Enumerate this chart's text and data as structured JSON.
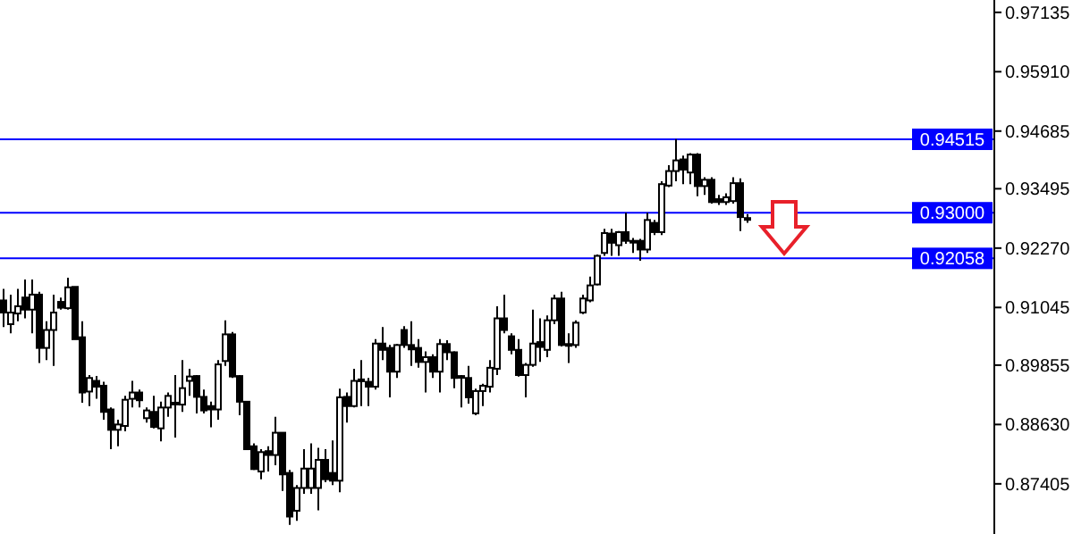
{
  "chart_data": {
    "type": "candlestick",
    "categories": [
      null,
      null,
      null,
      null,
      null,
      null,
      null,
      null,
      null,
      null,
      null,
      null,
      null,
      null,
      null,
      null,
      null,
      null,
      null,
      null,
      null,
      null,
      null,
      null,
      null,
      null,
      null,
      null,
      null,
      null,
      null,
      null,
      null,
      null,
      null,
      null,
      null,
      null,
      null,
      null,
      null,
      null,
      null,
      null,
      null,
      null,
      null,
      null,
      null,
      null,
      null,
      null,
      null,
      null,
      null,
      null,
      null,
      null,
      null,
      null,
      null,
      null,
      null,
      null,
      null,
      null,
      null,
      null,
      null,
      null,
      null,
      null,
      null,
      null,
      null,
      null,
      null,
      null,
      null,
      null,
      null,
      null,
      null,
      null,
      null,
      null,
      null,
      null,
      null,
      null,
      null,
      null,
      null,
      null,
      null,
      null,
      null,
      null,
      null,
      null,
      null,
      null,
      null,
      null,
      null,
      null,
      null,
      null,
      null,
      null,
      null,
      null,
      null,
      null,
      null,
      null,
      null,
      null,
      null,
      null,
      null,
      null,
      null,
      null,
      null,
      null,
      null,
      null,
      null,
      null,
      null,
      null,
      null,
      null,
      null,
      null,
      null,
      null,
      null
    ],
    "ohlc": [
      [
        0.9119,
        0.9143,
        0.9064,
        0.9094
      ],
      [
        0.907,
        0.9131,
        0.9051,
        0.9094
      ],
      [
        0.9092,
        0.9143,
        0.9076,
        0.9107
      ],
      [
        0.9125,
        0.9162,
        0.9082,
        0.91
      ],
      [
        0.91,
        0.9162,
        0.9051,
        0.9131
      ],
      [
        0.9131,
        0.9137,
        0.899,
        0.9021
      ],
      [
        0.9021,
        0.9076,
        0.8996,
        0.9058
      ],
      [
        0.9058,
        0.9131,
        0.8984,
        0.9094
      ],
      [
        0.9116,
        0.9125,
        0.91,
        0.9104
      ],
      [
        0.9103,
        0.9166,
        0.91,
        0.9146
      ],
      [
        0.9147,
        0.9147,
        0.9039,
        0.9039
      ],
      [
        0.9043,
        0.9076,
        0.8908,
        0.8929
      ],
      [
        0.8931,
        0.8965,
        0.8901,
        0.8959
      ],
      [
        0.8953,
        0.8963,
        0.8916,
        0.8941
      ],
      [
        0.8943,
        0.8951,
        0.8873,
        0.8889
      ],
      [
        0.8894,
        0.8898,
        0.8812,
        0.8852
      ],
      [
        0.8852,
        0.8873,
        0.8818,
        0.8863
      ],
      [
        0.886,
        0.8922,
        0.8849,
        0.8914
      ],
      [
        0.8916,
        0.8953,
        0.8898,
        0.8929
      ],
      [
        0.8929,
        0.8935,
        0.8898,
        0.8913
      ],
      [
        0.8876,
        0.8898,
        0.8867,
        0.8892
      ],
      [
        0.8889,
        0.8922,
        0.8855,
        0.8858
      ],
      [
        0.8855,
        0.891,
        0.8828,
        0.8898
      ],
      [
        0.8898,
        0.8929,
        0.8879,
        0.8922
      ],
      [
        0.8908,
        0.8965,
        0.8836,
        0.8906
      ],
      [
        0.8904,
        0.8996,
        0.8889,
        0.8938
      ],
      [
        0.8953,
        0.8978,
        0.8922,
        0.8962
      ],
      [
        0.8963,
        0.8965,
        0.8886,
        0.892
      ],
      [
        0.892,
        0.8935,
        0.8886,
        0.8892
      ],
      [
        0.8901,
        0.891,
        0.8857,
        0.8894
      ],
      [
        0.8894,
        0.8996,
        0.8873,
        0.8987
      ],
      [
        0.8994,
        0.9078,
        0.8984,
        0.9049
      ],
      [
        0.9049,
        0.9054,
        0.8959,
        0.8962
      ],
      [
        0.8963,
        0.8965,
        0.8882,
        0.891
      ],
      [
        0.891,
        0.891,
        0.8812,
        0.8812
      ],
      [
        0.8818,
        0.8824,
        0.8769,
        0.8771
      ],
      [
        0.8766,
        0.8812,
        0.875,
        0.8806
      ],
      [
        0.8808,
        0.8818,
        0.8766,
        0.88
      ],
      [
        0.88,
        0.8879,
        0.8779,
        0.8846
      ],
      [
        0.8846,
        0.8846,
        0.8726,
        0.876
      ],
      [
        0.8763,
        0.8769,
        0.8656,
        0.8673
      ],
      [
        0.8685,
        0.8738,
        0.8664,
        0.8732
      ],
      [
        0.8732,
        0.8812,
        0.872,
        0.8772
      ],
      [
        0.8732,
        0.8824,
        0.872,
        0.8772
      ],
      [
        0.8732,
        0.8815,
        0.8686,
        0.879
      ],
      [
        0.879,
        0.8812,
        0.8744,
        0.875
      ],
      [
        0.8763,
        0.883,
        0.8738,
        0.8747
      ],
      [
        0.8747,
        0.8937,
        0.8723,
        0.8919
      ],
      [
        0.892,
        0.8929,
        0.8867,
        0.8901
      ],
      [
        0.8901,
        0.8978,
        0.8898,
        0.8953
      ],
      [
        0.8953,
        0.8996,
        0.8901,
        0.8956
      ],
      [
        0.8951,
        0.8959,
        0.8901,
        0.8941
      ],
      [
        0.8941,
        0.9039,
        0.8935,
        0.903
      ],
      [
        0.903,
        0.9064,
        0.8996,
        0.9017
      ],
      [
        0.9021,
        0.9027,
        0.8919,
        0.8972
      ],
      [
        0.8972,
        0.9029,
        0.8959,
        0.9027
      ],
      [
        0.9058,
        0.9066,
        0.9021,
        0.9027
      ],
      [
        0.9027,
        0.9076,
        0.8984,
        0.9018
      ],
      [
        0.9021,
        0.9039,
        0.898,
        0.8992
      ],
      [
        0.8992,
        0.9014,
        0.8929,
        0.9002
      ],
      [
        0.9002,
        0.9008,
        0.8959,
        0.8972
      ],
      [
        0.8972,
        0.9039,
        0.8929,
        0.9029
      ],
      [
        0.9029,
        0.9037,
        0.8996,
        0.9012
      ],
      [
        0.9012,
        0.9014,
        0.8938,
        0.8959
      ],
      [
        0.8963,
        0.8965,
        0.8898,
        0.8962
      ],
      [
        0.8959,
        0.8984,
        0.8906,
        0.8919
      ],
      [
        0.8886,
        0.8937,
        0.8882,
        0.8932
      ],
      [
        0.8932,
        0.8947,
        0.8901,
        0.8943
      ],
      [
        0.8941,
        0.8996,
        0.8929,
        0.898
      ],
      [
        0.8978,
        0.9107,
        0.8965,
        0.9082
      ],
      [
        0.9082,
        0.9131,
        0.9051,
        0.9058
      ],
      [
        0.9045,
        0.9051,
        0.9008,
        0.9017
      ],
      [
        0.9017,
        0.9039,
        0.8962,
        0.8965
      ],
      [
        0.8965,
        0.899,
        0.8919,
        0.8986
      ],
      [
        0.8986,
        0.91,
        0.8982,
        0.903
      ],
      [
        0.9033,
        0.9082,
        0.8992,
        0.9023
      ],
      [
        0.9017,
        0.9088,
        0.9002,
        0.9078
      ],
      [
        0.9078,
        0.9131,
        0.907,
        0.9123
      ],
      [
        0.9123,
        0.9137,
        0.9024,
        0.9027
      ],
      [
        0.9028,
        0.9051,
        0.899,
        0.9029
      ],
      [
        0.9027,
        0.9078,
        0.9021,
        0.9073
      ],
      [
        0.9094,
        0.9131,
        0.9091,
        0.9123
      ],
      [
        0.9119,
        0.9168,
        0.9115,
        0.915
      ],
      [
        0.9152,
        0.9214,
        0.915,
        0.9211
      ],
      [
        0.9217,
        0.9267,
        0.9211,
        0.9258
      ],
      [
        0.9257,
        0.9267,
        0.9211,
        0.9238
      ],
      [
        0.9233,
        0.9262,
        0.9211,
        0.926
      ],
      [
        0.926,
        0.93,
        0.9236,
        0.9242
      ],
      [
        0.9242,
        0.9248,
        0.9217,
        0.9241
      ],
      [
        0.9242,
        0.9246,
        0.9201,
        0.9224
      ],
      [
        0.9224,
        0.93,
        0.9217,
        0.9285
      ],
      [
        0.9279,
        0.9285,
        0.9254,
        0.926
      ],
      [
        0.926,
        0.9365,
        0.9254,
        0.9359
      ],
      [
        0.9356,
        0.9398,
        0.9353,
        0.9386
      ],
      [
        0.9386,
        0.9452,
        0.9365,
        0.9408
      ],
      [
        0.941,
        0.9418,
        0.9359,
        0.9389
      ],
      [
        0.9383,
        0.9423,
        0.9359,
        0.942
      ],
      [
        0.942,
        0.9423,
        0.9334,
        0.9355
      ],
      [
        0.9355,
        0.9373,
        0.9337,
        0.9368
      ],
      [
        0.9368,
        0.9373,
        0.9319,
        0.9322
      ],
      [
        0.9328,
        0.9337,
        0.9316,
        0.9322
      ],
      [
        0.9322,
        0.934,
        0.9316,
        0.9332
      ],
      [
        0.9324,
        0.9373,
        0.9319,
        0.9361
      ],
      [
        0.9361,
        0.9371,
        0.9262,
        0.9291
      ],
      [
        0.9289,
        0.9297,
        0.9279,
        0.9288
      ],
      null,
      null,
      null,
      null,
      null,
      null,
      null,
      null,
      null,
      null,
      null,
      null,
      null,
      null,
      null,
      null,
      null,
      null,
      null,
      null,
      null,
      null,
      null,
      null,
      null,
      null,
      null,
      null,
      null,
      null,
      null,
      null,
      null,
      null
    ],
    "ylim": [
      0.8637,
      0.9739
    ],
    "yticks": [
      0.97135,
      {
        "value": 0.9591,
        "label": "0.95910"
      },
      0.94685,
      0.93495,
      {
        "value": 0.9227,
        "label": "0.92270"
      },
      0.91045,
      0.89855,
      {
        "value": 0.8863,
        "label": "0.88630"
      },
      0.87405
    ],
    "ref_lines": [
      {
        "axis": "y",
        "value": 0.94515,
        "label": "0.94515",
        "color": "#0000ff"
      },
      {
        "axis": "y",
        "value": 0.93,
        "label": "0.93000",
        "color": "#0000ff"
      },
      {
        "axis": "y",
        "value": 0.92058,
        "label": "0.92058",
        "color": "#0000ff"
      }
    ],
    "tick_labels": "y"
  }
}
